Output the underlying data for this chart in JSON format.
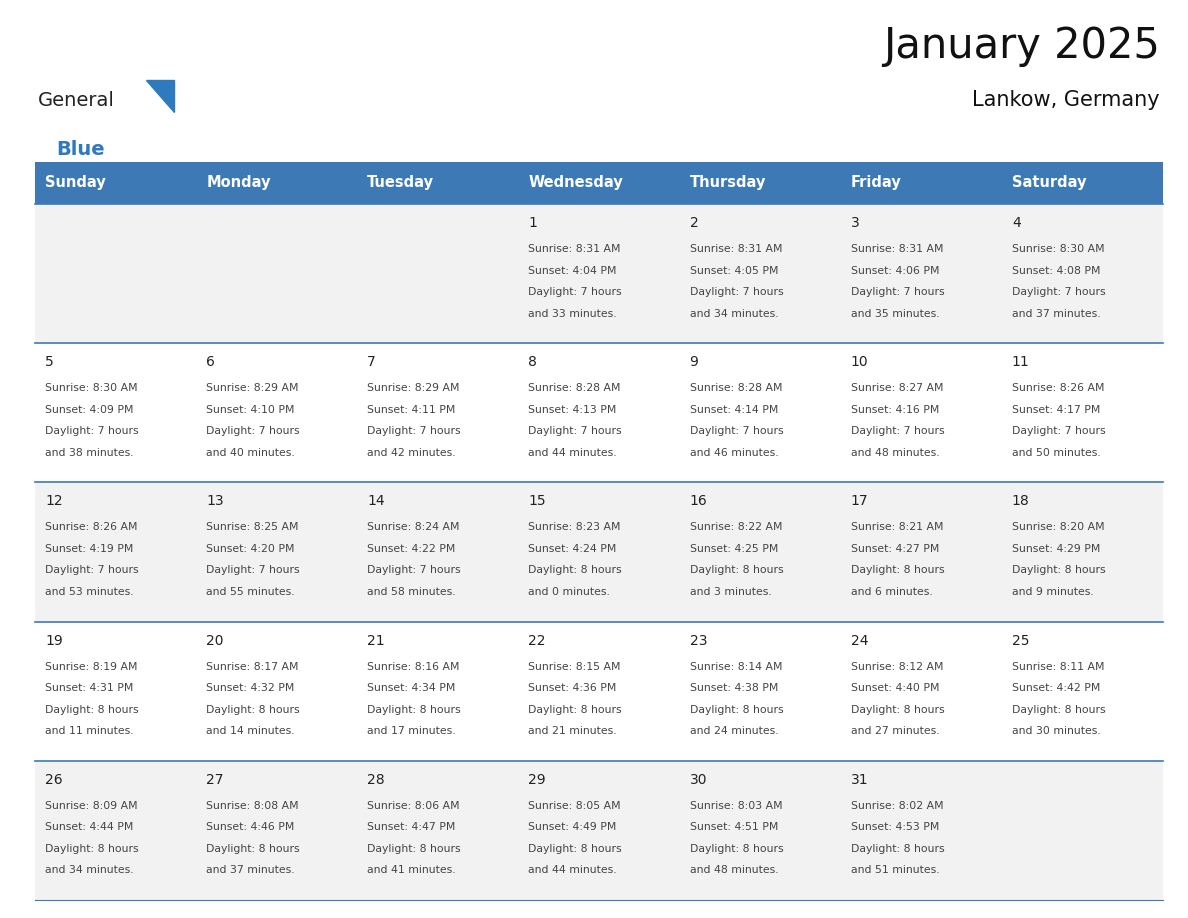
{
  "title": "January 2025",
  "subtitle": "Lankow, Germany",
  "days_of_week": [
    "Sunday",
    "Monday",
    "Tuesday",
    "Wednesday",
    "Thursday",
    "Friday",
    "Saturday"
  ],
  "header_bg": "#3d7ab5",
  "header_text": "#ffffff",
  "cell_bg_odd": "#f2f2f2",
  "cell_bg_even": "#ffffff",
  "border_color": "#3d7ab5",
  "text_color": "#444444",
  "day_num_color": "#222222",
  "calendar_data": [
    [
      {
        "day": null
      },
      {
        "day": null
      },
      {
        "day": null
      },
      {
        "day": 1,
        "sunrise": "8:31 AM",
        "sunset": "4:04 PM",
        "daylight": "7 hours",
        "daylight2": "and 33 minutes."
      },
      {
        "day": 2,
        "sunrise": "8:31 AM",
        "sunset": "4:05 PM",
        "daylight": "7 hours",
        "daylight2": "and 34 minutes."
      },
      {
        "day": 3,
        "sunrise": "8:31 AM",
        "sunset": "4:06 PM",
        "daylight": "7 hours",
        "daylight2": "and 35 minutes."
      },
      {
        "day": 4,
        "sunrise": "8:30 AM",
        "sunset": "4:08 PM",
        "daylight": "7 hours",
        "daylight2": "and 37 minutes."
      }
    ],
    [
      {
        "day": 5,
        "sunrise": "8:30 AM",
        "sunset": "4:09 PM",
        "daylight": "7 hours",
        "daylight2": "and 38 minutes."
      },
      {
        "day": 6,
        "sunrise": "8:29 AM",
        "sunset": "4:10 PM",
        "daylight": "7 hours",
        "daylight2": "and 40 minutes."
      },
      {
        "day": 7,
        "sunrise": "8:29 AM",
        "sunset": "4:11 PM",
        "daylight": "7 hours",
        "daylight2": "and 42 minutes."
      },
      {
        "day": 8,
        "sunrise": "8:28 AM",
        "sunset": "4:13 PM",
        "daylight": "7 hours",
        "daylight2": "and 44 minutes."
      },
      {
        "day": 9,
        "sunrise": "8:28 AM",
        "sunset": "4:14 PM",
        "daylight": "7 hours",
        "daylight2": "and 46 minutes."
      },
      {
        "day": 10,
        "sunrise": "8:27 AM",
        "sunset": "4:16 PM",
        "daylight": "7 hours",
        "daylight2": "and 48 minutes."
      },
      {
        "day": 11,
        "sunrise": "8:26 AM",
        "sunset": "4:17 PM",
        "daylight": "7 hours",
        "daylight2": "and 50 minutes."
      }
    ],
    [
      {
        "day": 12,
        "sunrise": "8:26 AM",
        "sunset": "4:19 PM",
        "daylight": "7 hours",
        "daylight2": "and 53 minutes."
      },
      {
        "day": 13,
        "sunrise": "8:25 AM",
        "sunset": "4:20 PM",
        "daylight": "7 hours",
        "daylight2": "and 55 minutes."
      },
      {
        "day": 14,
        "sunrise": "8:24 AM",
        "sunset": "4:22 PM",
        "daylight": "7 hours",
        "daylight2": "and 58 minutes."
      },
      {
        "day": 15,
        "sunrise": "8:23 AM",
        "sunset": "4:24 PM",
        "daylight": "8 hours",
        "daylight2": "and 0 minutes."
      },
      {
        "day": 16,
        "sunrise": "8:22 AM",
        "sunset": "4:25 PM",
        "daylight": "8 hours",
        "daylight2": "and 3 minutes."
      },
      {
        "day": 17,
        "sunrise": "8:21 AM",
        "sunset": "4:27 PM",
        "daylight": "8 hours",
        "daylight2": "and 6 minutes."
      },
      {
        "day": 18,
        "sunrise": "8:20 AM",
        "sunset": "4:29 PM",
        "daylight": "8 hours",
        "daylight2": "and 9 minutes."
      }
    ],
    [
      {
        "day": 19,
        "sunrise": "8:19 AM",
        "sunset": "4:31 PM",
        "daylight": "8 hours",
        "daylight2": "and 11 minutes."
      },
      {
        "day": 20,
        "sunrise": "8:17 AM",
        "sunset": "4:32 PM",
        "daylight": "8 hours",
        "daylight2": "and 14 minutes."
      },
      {
        "day": 21,
        "sunrise": "8:16 AM",
        "sunset": "4:34 PM",
        "daylight": "8 hours",
        "daylight2": "and 17 minutes."
      },
      {
        "day": 22,
        "sunrise": "8:15 AM",
        "sunset": "4:36 PM",
        "daylight": "8 hours",
        "daylight2": "and 21 minutes."
      },
      {
        "day": 23,
        "sunrise": "8:14 AM",
        "sunset": "4:38 PM",
        "daylight": "8 hours",
        "daylight2": "and 24 minutes."
      },
      {
        "day": 24,
        "sunrise": "8:12 AM",
        "sunset": "4:40 PM",
        "daylight": "8 hours",
        "daylight2": "and 27 minutes."
      },
      {
        "day": 25,
        "sunrise": "8:11 AM",
        "sunset": "4:42 PM",
        "daylight": "8 hours",
        "daylight2": "and 30 minutes."
      }
    ],
    [
      {
        "day": 26,
        "sunrise": "8:09 AM",
        "sunset": "4:44 PM",
        "daylight": "8 hours",
        "daylight2": "and 34 minutes."
      },
      {
        "day": 27,
        "sunrise": "8:08 AM",
        "sunset": "4:46 PM",
        "daylight": "8 hours",
        "daylight2": "and 37 minutes."
      },
      {
        "day": 28,
        "sunrise": "8:06 AM",
        "sunset": "4:47 PM",
        "daylight": "8 hours",
        "daylight2": "and 41 minutes."
      },
      {
        "day": 29,
        "sunrise": "8:05 AM",
        "sunset": "4:49 PM",
        "daylight": "8 hours",
        "daylight2": "and 44 minutes."
      },
      {
        "day": 30,
        "sunrise": "8:03 AM",
        "sunset": "4:51 PM",
        "daylight": "8 hours",
        "daylight2": "and 48 minutes."
      },
      {
        "day": 31,
        "sunrise": "8:02 AM",
        "sunset": "4:53 PM",
        "daylight": "8 hours",
        "daylight2": "and 51 minutes."
      },
      {
        "day": null
      }
    ]
  ],
  "logo_general_color": "#222222",
  "logo_blue_color": "#2e7abf",
  "fig_width": 11.88,
  "fig_height": 9.18,
  "dpi": 100
}
